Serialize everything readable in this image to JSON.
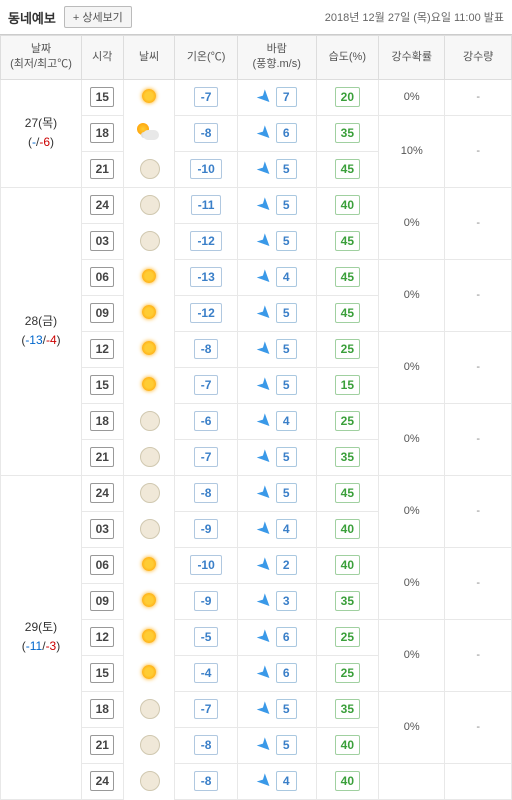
{
  "header": {
    "title": "동네예보",
    "detail_btn": "+ 상세보기",
    "timestamp": "2018년 12월 27일 (목)요일 11:00 발표"
  },
  "columns": {
    "date": "날짜\n(최저/최고℃)",
    "time": "시각",
    "weather": "날씨",
    "temp": "기온(℃)",
    "wind": "바람\n(풍향.m/s)",
    "humidity": "습도(%)",
    "prob": "강수확률",
    "precip": "강수량"
  },
  "days": [
    {
      "label": "27(목)",
      "lo": "-",
      "hi": "-6",
      "rows": [
        {
          "time": "15",
          "icon": "sunny",
          "temp": "-7",
          "wind": "7",
          "humid": "20",
          "prob": "0%",
          "precip": "-",
          "probspan": 1
        },
        {
          "time": "18",
          "icon": "partly",
          "temp": "-8",
          "wind": "6",
          "humid": "35",
          "prob": "10%",
          "precip": "-",
          "probspan": 2
        },
        {
          "time": "21",
          "icon": "moon",
          "temp": "-10",
          "wind": "5",
          "humid": "45",
          "prob": "0%",
          "precip": "",
          "probspan": 0
        }
      ]
    },
    {
      "label": "28(금)",
      "lo": "-13",
      "hi": "-4",
      "rows": [
        {
          "time": "24",
          "icon": "moon",
          "temp": "-11",
          "wind": "5",
          "humid": "40",
          "prob": "0%",
          "precip": "-",
          "probspan": 2
        },
        {
          "time": "03",
          "icon": "moon",
          "temp": "-12",
          "wind": "5",
          "humid": "45",
          "prob": "0%",
          "precip": "",
          "probspan": 0
        },
        {
          "time": "06",
          "icon": "sunny",
          "temp": "-13",
          "wind": "4",
          "humid": "45",
          "prob": "0%",
          "precip": "-",
          "probspan": 2
        },
        {
          "time": "09",
          "icon": "sunny",
          "temp": "-12",
          "wind": "5",
          "humid": "45",
          "prob": "0%",
          "precip": "",
          "probspan": 0
        },
        {
          "time": "12",
          "icon": "sunny",
          "temp": "-8",
          "wind": "5",
          "humid": "25",
          "prob": "0%",
          "precip": "-",
          "probspan": 2
        },
        {
          "time": "15",
          "icon": "sunny",
          "temp": "-7",
          "wind": "5",
          "humid": "15",
          "prob": "0%",
          "precip": "",
          "probspan": 0
        },
        {
          "time": "18",
          "icon": "moon",
          "temp": "-6",
          "wind": "4",
          "humid": "25",
          "prob": "0%",
          "precip": "-",
          "probspan": 2
        },
        {
          "time": "21",
          "icon": "moon",
          "temp": "-7",
          "wind": "5",
          "humid": "35",
          "prob": "0%",
          "precip": "",
          "probspan": 0
        }
      ]
    },
    {
      "label": "29(토)",
      "lo": "-11",
      "hi": "-3",
      "rows": [
        {
          "time": "24",
          "icon": "moon",
          "temp": "-8",
          "wind": "5",
          "humid": "45",
          "prob": "0%",
          "precip": "-",
          "probspan": 2
        },
        {
          "time": "03",
          "icon": "moon",
          "temp": "-9",
          "wind": "4",
          "humid": "40",
          "prob": "0%",
          "precip": "",
          "probspan": 0
        },
        {
          "time": "06",
          "icon": "sunny",
          "temp": "-10",
          "wind": "2",
          "humid": "40",
          "prob": "0%",
          "precip": "-",
          "probspan": 2
        },
        {
          "time": "09",
          "icon": "sunny",
          "temp": "-9",
          "wind": "3",
          "humid": "35",
          "prob": "0%",
          "precip": "",
          "probspan": 0
        },
        {
          "time": "12",
          "icon": "sunny",
          "temp": "-5",
          "wind": "6",
          "humid": "25",
          "prob": "0%",
          "precip": "-",
          "probspan": 2
        },
        {
          "time": "15",
          "icon": "sunny",
          "temp": "-4",
          "wind": "6",
          "humid": "25",
          "prob": "0%",
          "precip": "",
          "probspan": 0
        },
        {
          "time": "18",
          "icon": "moon",
          "temp": "-7",
          "wind": "5",
          "humid": "35",
          "prob": "0%",
          "precip": "-",
          "probspan": 2
        },
        {
          "time": "21",
          "icon": "moon",
          "temp": "-8",
          "wind": "5",
          "humid": "40",
          "prob": "0%",
          "precip": "",
          "probspan": 0
        },
        {
          "time": "24",
          "icon": "moon",
          "temp": "-8",
          "wind": "4",
          "humid": "40",
          "prob": "",
          "precip": "",
          "probspan": 0,
          "last": true
        }
      ]
    }
  ]
}
